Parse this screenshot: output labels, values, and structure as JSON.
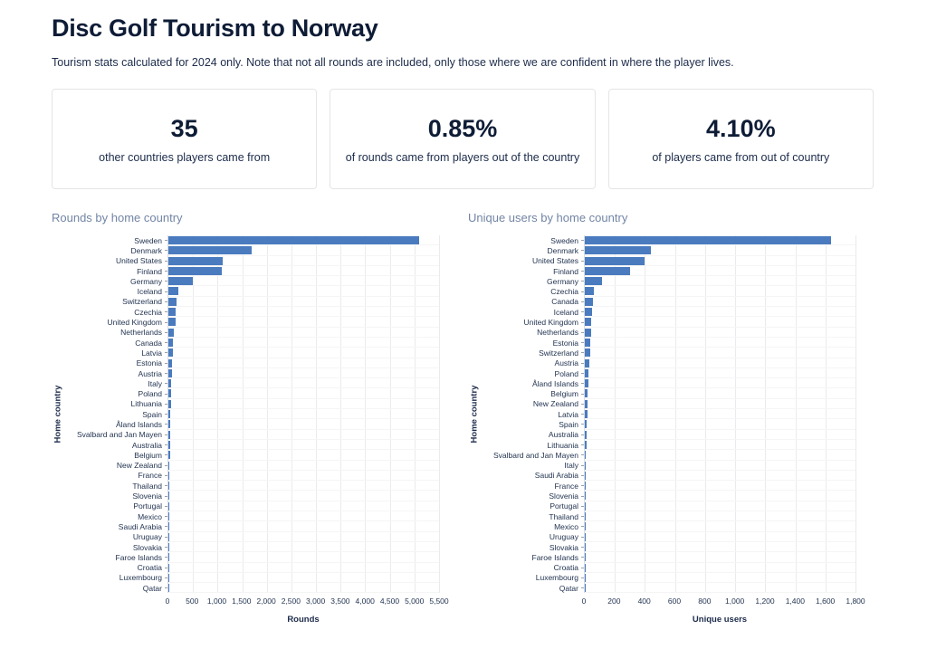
{
  "page": {
    "title": "Disc Golf Tourism to Norway",
    "subtitle": "Tourism stats calculated for 2024 only. Note that not all rounds are included, only those where we are confident in where the player lives."
  },
  "colors": {
    "bar": "#4a7bbf",
    "chart_title": "#7285a5",
    "heading": "#0e1c36"
  },
  "stats": [
    {
      "value": "35",
      "label": "other countries players came from"
    },
    {
      "value": "0.85%",
      "label": "of rounds came from players out of the country"
    },
    {
      "value": "4.10%",
      "label": "of players came from out of country"
    }
  ],
  "chart_data": [
    {
      "type": "bar",
      "orientation": "horizontal",
      "title": "Rounds by home country",
      "xlabel": "Rounds",
      "ylabel": "Home country",
      "xlim": [
        0,
        5500
      ],
      "xticks": [
        0,
        500,
        1000,
        1500,
        2000,
        2500,
        3000,
        3500,
        4000,
        4500,
        5000,
        5500
      ],
      "grid": true,
      "categories": [
        "Sweden",
        "Denmark",
        "United States",
        "Finland",
        "Germany",
        "Iceland",
        "Switzerland",
        "Czechia",
        "United Kingdom",
        "Netherlands",
        "Canada",
        "Latvia",
        "Estonia",
        "Austria",
        "Italy",
        "Poland",
        "Lithuania",
        "Spain",
        "Åland Islands",
        "Svalbard and Jan Mayen",
        "Australia",
        "Belgium",
        "New Zealand",
        "France",
        "Thailand",
        "Slovenia",
        "Portugal",
        "Mexico",
        "Saudi Arabia",
        "Uruguay",
        "Slovakia",
        "Faroe Islands",
        "Croatia",
        "Luxembourg",
        "Qatar"
      ],
      "values": [
        5100,
        1690,
        1100,
        1090,
        490,
        195,
        160,
        150,
        140,
        115,
        100,
        90,
        70,
        65,
        55,
        52,
        48,
        45,
        40,
        35,
        30,
        28,
        25,
        20,
        16,
        14,
        12,
        10,
        9,
        8,
        7,
        6,
        5,
        4,
        3
      ]
    },
    {
      "type": "bar",
      "orientation": "horizontal",
      "title": "Unique users by home country",
      "xlabel": "Unique users",
      "ylabel": "Home country",
      "xlim": [
        0,
        1800
      ],
      "xticks": [
        0,
        200,
        400,
        600,
        800,
        1000,
        1200,
        1400,
        1600,
        1800
      ],
      "grid": true,
      "categories": [
        "Sweden",
        "Denmark",
        "United States",
        "Finland",
        "Germany",
        "Czechia",
        "Canada",
        "Iceland",
        "United Kingdom",
        "Netherlands",
        "Estonia",
        "Switzerland",
        "Austria",
        "Poland",
        "Åland Islands",
        "Belgium",
        "New Zealand",
        "Latvia",
        "Spain",
        "Australia",
        "Lithuania",
        "Svalbard and Jan Mayen",
        "Italy",
        "Saudi Arabia",
        "France",
        "Slovenia",
        "Portugal",
        "Thailand",
        "Mexico",
        "Uruguay",
        "Slovakia",
        "Faroe Islands",
        "Croatia",
        "Luxembourg",
        "Qatar"
      ],
      "values": [
        1640,
        440,
        400,
        300,
        115,
        60,
        55,
        50,
        45,
        42,
        38,
        34,
        30,
        27,
        24,
        21,
        19,
        17,
        15,
        13,
        11,
        9,
        8,
        7,
        6,
        5,
        5,
        4,
        4,
        3,
        3,
        2,
        2,
        2,
        1
      ]
    }
  ]
}
